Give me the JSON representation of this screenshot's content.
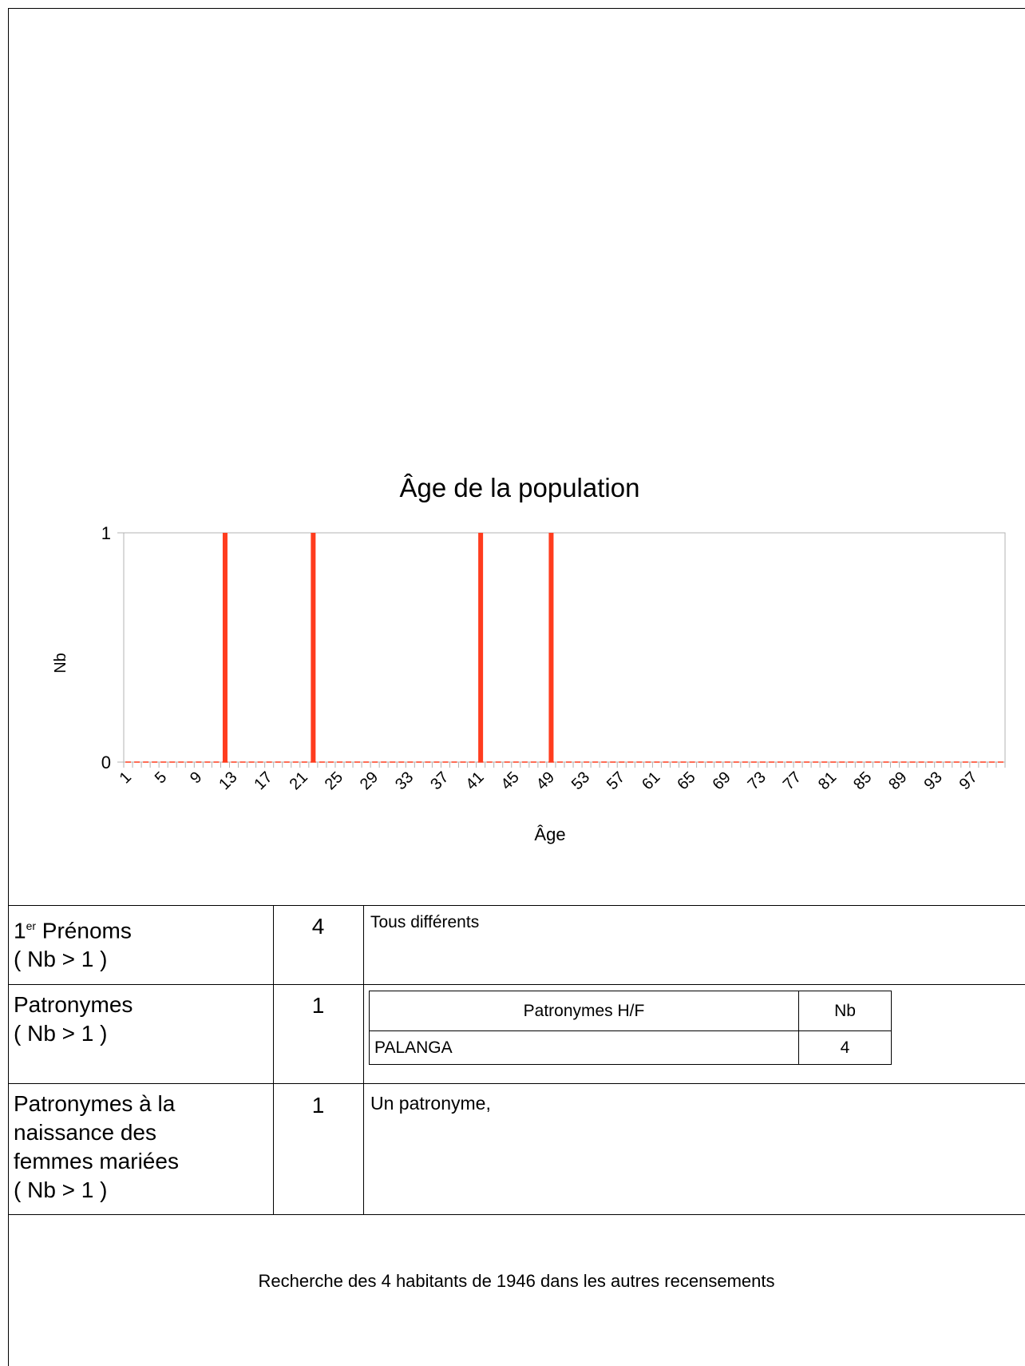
{
  "chart_data": {
    "type": "bar",
    "title": "Âge de la population",
    "xlabel": "Âge",
    "ylabel": "Nb",
    "ylim": [
      0,
      1
    ],
    "yticks": [
      "0",
      "1"
    ],
    "x": [
      1,
      100
    ],
    "xtick_labels": [
      "1",
      "5",
      "9",
      "13",
      "17",
      "21",
      "25",
      "29",
      "33",
      "37",
      "41",
      "45",
      "49",
      "53",
      "57",
      "61",
      "65",
      "69",
      "73",
      "77",
      "81",
      "85",
      "89",
      "93",
      "97"
    ],
    "bars": [
      {
        "x": 12,
        "value": 1
      },
      {
        "x": 22,
        "value": 1
      },
      {
        "x": 41,
        "value": 1
      },
      {
        "x": 49,
        "value": 1
      }
    ],
    "bar_color": "#ff3c1e",
    "grid": false
  },
  "rows": [
    {
      "label_sup_prefix": "1",
      "label_sup": "er",
      "label_main": " Prénoms",
      "label_cond": "( Nb > 1 )",
      "count": "4",
      "detail": "Tous différents"
    },
    {
      "label_line1": "Patronymes",
      "label_cond": "( Nb > 1 )",
      "count": "1",
      "table": {
        "headers": [
          "Patronymes H/F",
          "Nb"
        ],
        "rows": [
          [
            "PALANGA",
            "4"
          ]
        ]
      }
    },
    {
      "label_line1": "Patronymes à la",
      "label_line2": "naissance des",
      "label_line3": "femmes mariées",
      "label_cond": "( Nb > 1 )",
      "count": "1",
      "detail": "Un patronyme,"
    }
  ],
  "footer": "Recherche des 4 habitants de 1946 dans les autres recensements"
}
